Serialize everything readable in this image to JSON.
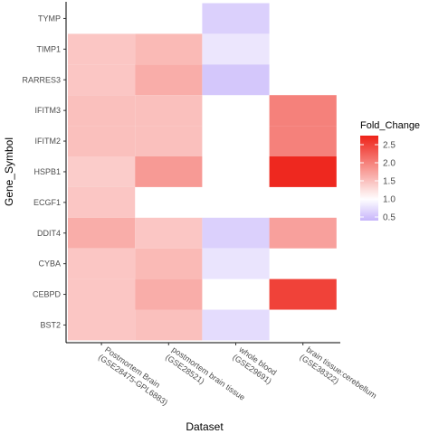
{
  "chart_data": {
    "type": "heatmap",
    "xlabel": "Dataset",
    "ylabel": "Gene_Symbol",
    "x_categories": [
      [
        "Postmortem Brain",
        "(GSE28475-GPL6883)"
      ],
      [
        "postmortem brain tissue",
        "(GSE28521)"
      ],
      [
        "whole blood",
        "(GSE29691)"
      ],
      [
        "brain tissue:cerebellum",
        "(GSE38322)"
      ]
    ],
    "y_categories": [
      "TYMP",
      "TIMP1",
      "RARRES3",
      "IFITM3",
      "IFITM2",
      "HSPB1",
      "ECGF1",
      "DDIT4",
      "CYBA",
      "CEBPD",
      "BST2"
    ],
    "cells": [
      {
        "gene": "TYMP",
        "dataset": 2,
        "value": 0.62
      },
      {
        "gene": "TIMP1",
        "dataset": 0,
        "value": 1.45
      },
      {
        "gene": "TIMP1",
        "dataset": 1,
        "value": 1.55
      },
      {
        "gene": "TIMP1",
        "dataset": 2,
        "value": 0.8
      },
      {
        "gene": "RARRES3",
        "dataset": 0,
        "value": 1.45
      },
      {
        "gene": "RARRES3",
        "dataset": 1,
        "value": 1.65
      },
      {
        "gene": "RARRES3",
        "dataset": 2,
        "value": 0.55
      },
      {
        "gene": "IFITM3",
        "dataset": 0,
        "value": 1.5
      },
      {
        "gene": "IFITM3",
        "dataset": 1,
        "value": 1.5
      },
      {
        "gene": "IFITM3",
        "dataset": 3,
        "value": 2.0
      },
      {
        "gene": "IFITM2",
        "dataset": 0,
        "value": 1.5
      },
      {
        "gene": "IFITM2",
        "dataset": 1,
        "value": 1.5
      },
      {
        "gene": "IFITM2",
        "dataset": 3,
        "value": 2.0
      },
      {
        "gene": "HSPB1",
        "dataset": 0,
        "value": 1.4
      },
      {
        "gene": "HSPB1",
        "dataset": 1,
        "value": 1.8
      },
      {
        "gene": "HSPB1",
        "dataset": 3,
        "value": 2.7
      },
      {
        "gene": "ECGF1",
        "dataset": 0,
        "value": 1.45
      },
      {
        "gene": "DDIT4",
        "dataset": 0,
        "value": 1.65
      },
      {
        "gene": "DDIT4",
        "dataset": 1,
        "value": 1.45
      },
      {
        "gene": "DDIT4",
        "dataset": 2,
        "value": 0.62
      },
      {
        "gene": "DDIT4",
        "dataset": 3,
        "value": 1.75
      },
      {
        "gene": "CYBA",
        "dataset": 0,
        "value": 1.45
      },
      {
        "gene": "CYBA",
        "dataset": 1,
        "value": 1.55
      },
      {
        "gene": "CYBA",
        "dataset": 2,
        "value": 0.78
      },
      {
        "gene": "CEBPD",
        "dataset": 0,
        "value": 1.45
      },
      {
        "gene": "CEBPD",
        "dataset": 1,
        "value": 1.65
      },
      {
        "gene": "CEBPD",
        "dataset": 3,
        "value": 2.5
      },
      {
        "gene": "BST2",
        "dataset": 0,
        "value": 1.45
      },
      {
        "gene": "BST2",
        "dataset": 1,
        "value": 1.5
      },
      {
        "gene": "BST2",
        "dataset": 2,
        "value": 0.72
      }
    ],
    "legend": {
      "title": "Fold_Change",
      "ticks": [
        {
          "value": 2.5,
          "label": "2.5"
        },
        {
          "value": 2.0,
          "label": "2.0"
        },
        {
          "value": 1.5,
          "label": "1.5"
        },
        {
          "value": 1.0,
          "label": "1.0"
        },
        {
          "value": 0.5,
          "label": "0.5"
        }
      ],
      "range": [
        0.4,
        2.75
      ],
      "placement": "right"
    },
    "colors": {
      "low": "#c6b4fa",
      "mid": "#ffffff",
      "high": "#ee2218",
      "midpoint": 1.0
    }
  }
}
